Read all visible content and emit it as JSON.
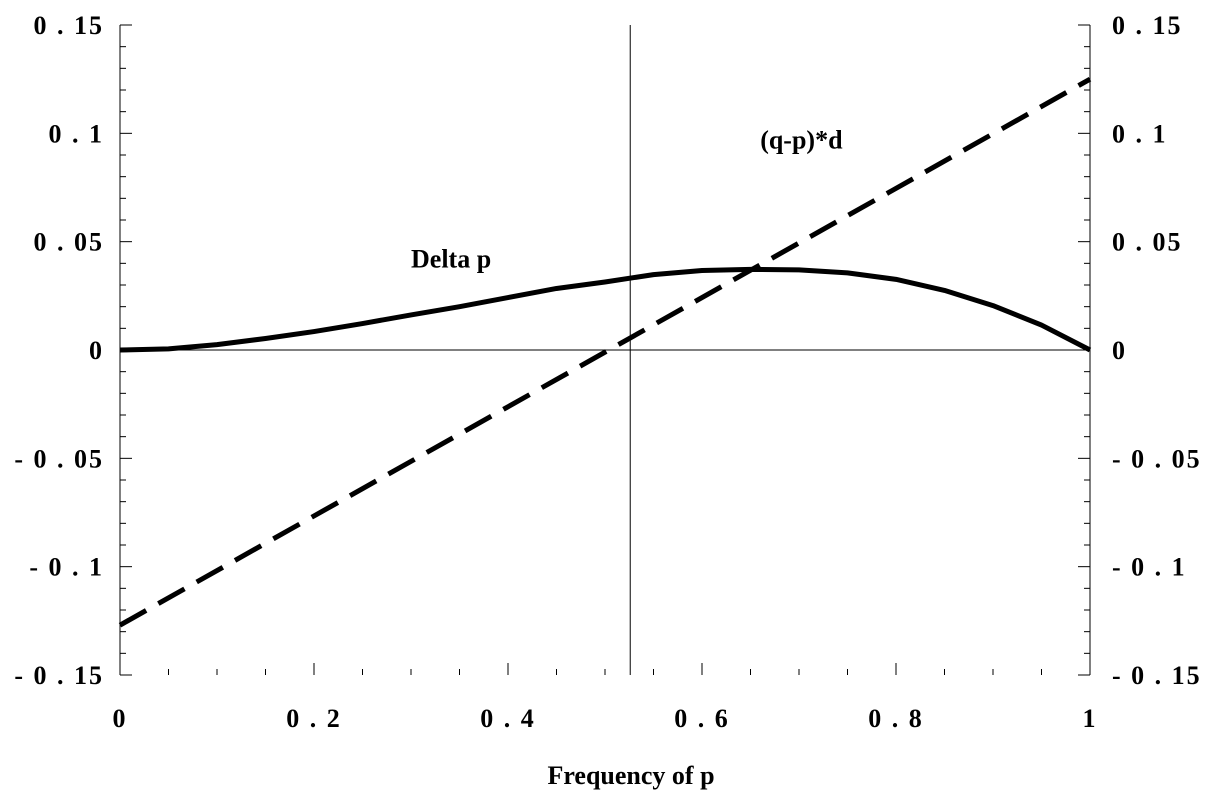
{
  "chart_data": {
    "type": "line",
    "title": "",
    "xlabel": "Frequency of p",
    "ylabel": "",
    "xlim": [
      0,
      1
    ],
    "ylim": [
      -0.15,
      0.15
    ],
    "x_ticks": [
      "0",
      "0 . 2",
      "0 . 4",
      "0 . 6",
      "0 . 8",
      "1"
    ],
    "y_ticks": [
      "0 . 15",
      "0 . 1",
      "0 . 05",
      "0",
      "- 0 . 05",
      "- 0 . 1",
      "- 0 . 15"
    ],
    "y_ticks_right": [
      "0 . 15",
      "0 . 1",
      "0 . 05",
      "0",
      "- 0 . 05",
      "- 0 . 1",
      "- 0 . 15"
    ],
    "vertical_reference_x": 0.526,
    "grid": false,
    "series": [
      {
        "name": "Delta p",
        "style": "solid",
        "x": [
          0,
          0.05,
          0.1,
          0.15,
          0.2,
          0.25,
          0.3,
          0.35,
          0.4,
          0.45,
          0.5,
          0.55,
          0.6,
          0.65,
          0.7,
          0.75,
          0.8,
          0.85,
          0.9,
          0.95,
          1.0
        ],
        "values": [
          0,
          0.0005,
          0.0025,
          0.0053,
          0.0085,
          0.0122,
          0.0162,
          0.02,
          0.0242,
          0.0284,
          0.0314,
          0.0348,
          0.0367,
          0.0372,
          0.037,
          0.0356,
          0.0326,
          0.0275,
          0.0205,
          0.0115,
          0
        ]
      },
      {
        "name": "(q-p)*d",
        "style": "dashed",
        "x": [
          0,
          1
        ],
        "values": [
          -0.127,
          0.125
        ]
      }
    ],
    "annotations": [
      {
        "text": "Delta p",
        "x": 0.3,
        "y": 0.038
      },
      {
        "text": "(q-p)*d",
        "x": 0.66,
        "y": 0.093
      }
    ],
    "colors": {
      "line": "#000000",
      "axis": "#000000",
      "background": "#ffffff"
    }
  }
}
